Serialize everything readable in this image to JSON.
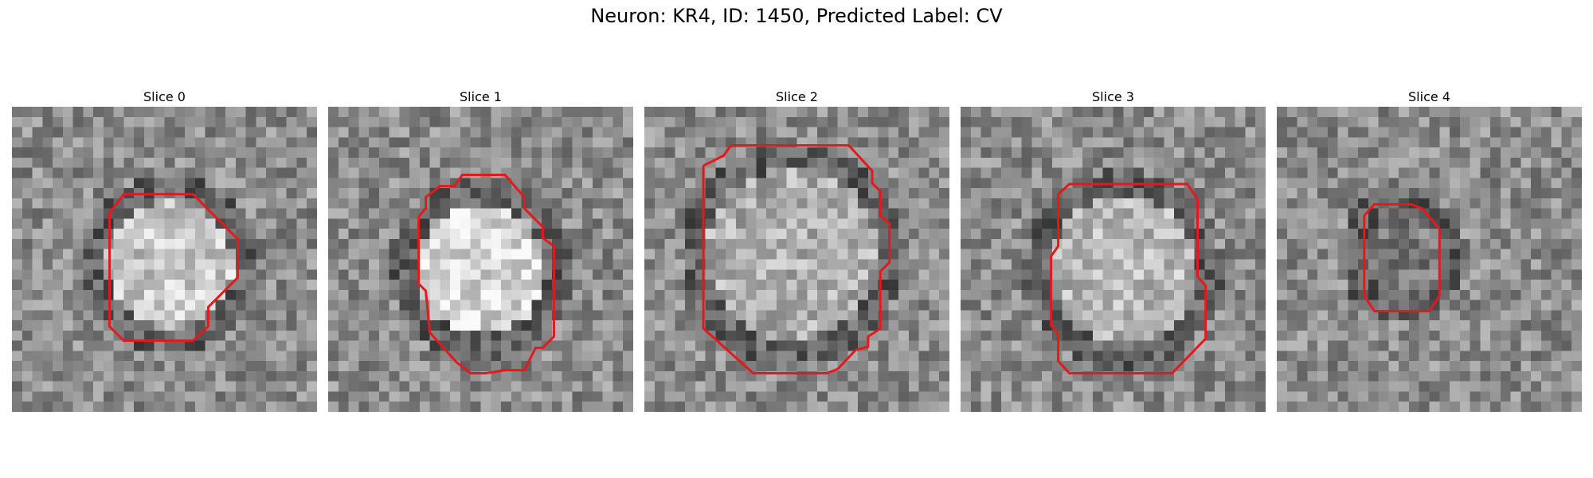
{
  "figure": {
    "title": "Neuron: KR4, ID: 1450, Predicted Label: CV",
    "outline_color": "#e3191c"
  },
  "panels": [
    {
      "title": "Slice 0",
      "cell_brightness": 0.78,
      "seed": 11
    },
    {
      "title": "Slice 1",
      "cell_brightness": 0.84,
      "seed": 27
    },
    {
      "title": "Slice 2",
      "cell_brightness": 0.68,
      "seed": 43
    },
    {
      "title": "Slice 3",
      "cell_brightness": 0.72,
      "seed": 59
    },
    {
      "title": "Slice 4",
      "cell_brightness": 0.48,
      "seed": 71
    }
  ]
}
